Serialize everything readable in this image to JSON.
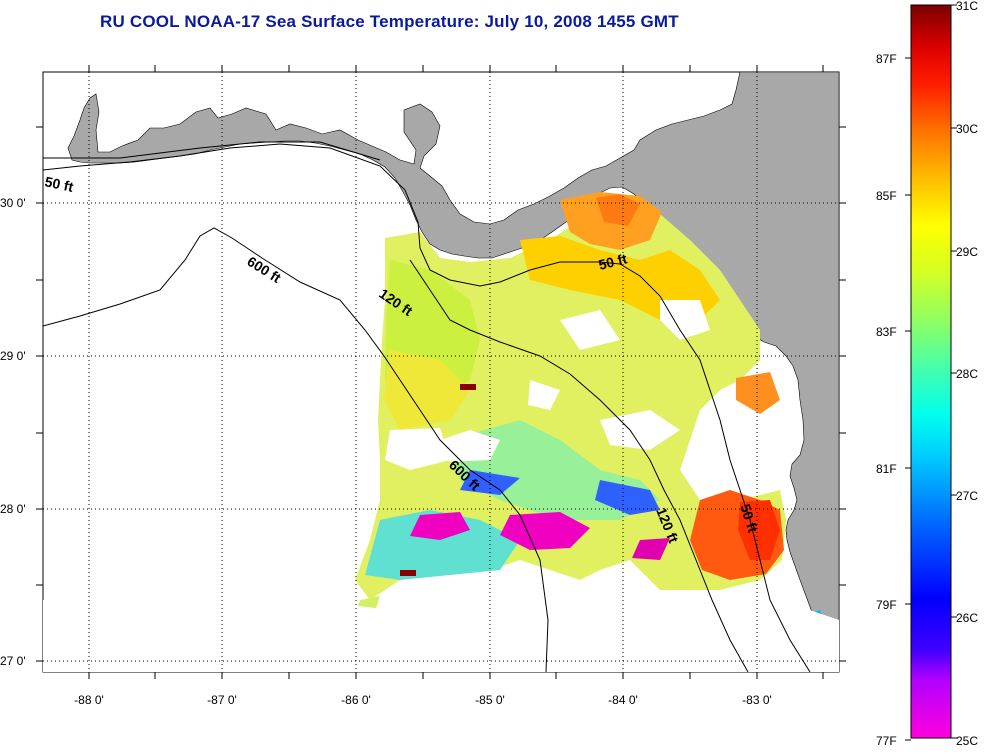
{
  "title": "RU COOL  NOAA-17  Sea Surface Temperature:  July 10, 2008 1455 GMT",
  "map": {
    "lat_ticks": [
      "30 0'",
      "29 0'",
      "28 0'",
      "27 0'"
    ],
    "lon_ticks": [
      "-88 0'",
      "-87 0'",
      "-86 0'",
      "-85 0'",
      "-84 0'",
      "-83 0'"
    ],
    "lon_range": [
      -88.35,
      -82.45
    ],
    "lat_range": [
      26.95,
      30.88
    ],
    "land_color": "#a8a8a8",
    "water_nodata_color": "#ffffff",
    "contour_labels": [
      {
        "text": "50 ft"
      },
      {
        "text": "600 ft"
      },
      {
        "text": "120 ft"
      },
      {
        "text": "50 ft"
      },
      {
        "text": "600 ft"
      },
      {
        "text": "120 ft"
      },
      {
        "text": "50 ft"
      }
    ]
  },
  "colorbar": {
    "fahrenheit_labels": [
      "87F",
      "85F",
      "83F",
      "81F",
      "79F",
      "77F"
    ],
    "celsius_labels": [
      "31C",
      "30C",
      "29C",
      "28C",
      "27C",
      "26C",
      "25C"
    ],
    "range_c": [
      25,
      31
    ],
    "range_f": [
      77,
      87.8
    ],
    "colors": [
      "#ff00c8",
      "#6a00ff",
      "#0000ff",
      "#0096ff",
      "#00ffff",
      "#6bffa0",
      "#ccff33",
      "#ffff00",
      "#ffb000",
      "#ff6000",
      "#ff0000",
      "#8b0000"
    ]
  }
}
